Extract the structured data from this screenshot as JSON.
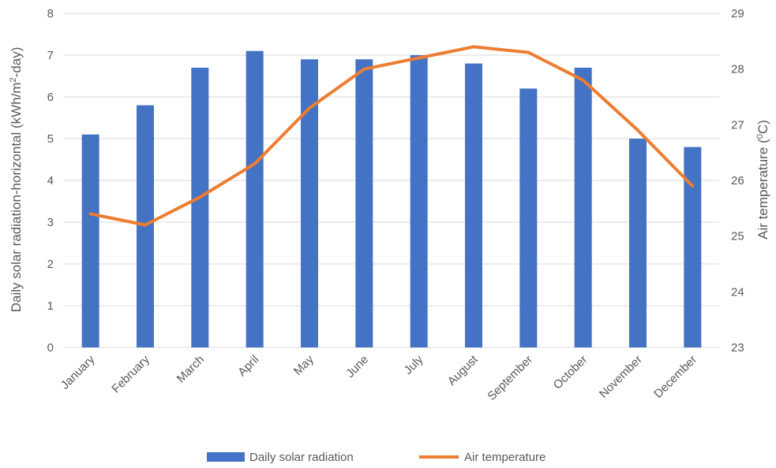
{
  "chart_data": {
    "type": "bar",
    "categories": [
      "January",
      "February",
      "March",
      "April",
      "May",
      "June",
      "July",
      "August",
      "September",
      "October",
      "November",
      "December"
    ],
    "series": [
      {
        "name": "Daily solar radiation",
        "type": "bar",
        "axis": "left",
        "color": "#4472C4",
        "values": [
          5.1,
          5.8,
          6.7,
          7.1,
          6.9,
          6.9,
          7.0,
          6.8,
          6.2,
          6.7,
          5.0,
          4.8
        ]
      },
      {
        "name": "Air temperature",
        "type": "line",
        "axis": "right",
        "color": "#ED7D31",
        "values": [
          25.4,
          25.2,
          25.7,
          26.3,
          27.3,
          28.0,
          28.2,
          28.4,
          28.3,
          27.8,
          26.9,
          25.9
        ]
      }
    ],
    "y_left": {
      "label_main": "Daily solar radiation-horizontal (kWh/m",
      "label_sup": "2",
      "label_end": "-day)",
      "lim": [
        0,
        8
      ],
      "ticks": [
        "0",
        "1",
        "2",
        "3",
        "4",
        "5",
        "6",
        "7",
        "8"
      ]
    },
    "y_right": {
      "label_main": "Air temperature (",
      "label_sup": "0",
      "label_end": "C)",
      "lim": [
        23,
        29
      ],
      "ticks": [
        "23",
        "24",
        "25",
        "26",
        "27",
        "28",
        "29"
      ]
    },
    "grid": true,
    "legend": "bottom"
  }
}
